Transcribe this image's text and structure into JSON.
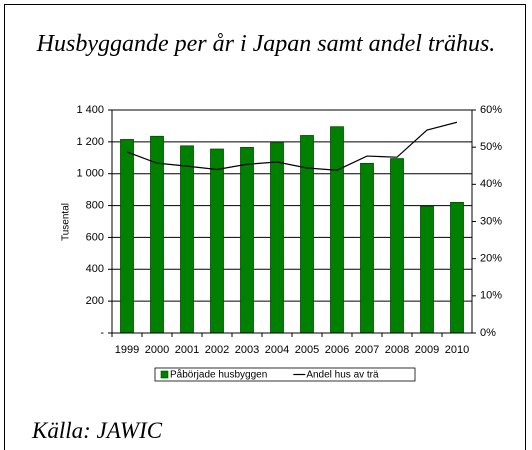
{
  "chart_data": {
    "type": "bar",
    "title": "Husbyggande per år i Japan samt andel trähus.",
    "y_label": "Tusental",
    "source": "Källa: JAWIC",
    "categories": [
      "1999",
      "2000",
      "2001",
      "2002",
      "2003",
      "2004",
      "2005",
      "2006",
      "2007",
      "2008",
      "2009",
      "2010"
    ],
    "series": [
      {
        "name": "Påbörjade husbyggen",
        "type": "bar",
        "color": "#008000",
        "values": [
          1215,
          1235,
          1175,
          1155,
          1165,
          1195,
          1240,
          1295,
          1065,
          1095,
          795,
          820
        ]
      },
      {
        "name": "Andel hus av trä",
        "type": "line",
        "axis": "y2",
        "color": "#000000",
        "values": [
          48.7,
          45.7,
          44.9,
          44.0,
          45.4,
          46.0,
          44.4,
          43.8,
          47.6,
          47.3,
          54.6,
          56.7
        ]
      }
    ],
    "ylim": [
      0,
      1400
    ],
    "yticks": [
      {
        "value": 0,
        "label": "-"
      },
      200,
      400,
      600,
      800,
      {
        "value": 1000,
        "label": "1 000"
      },
      {
        "value": 1200,
        "label": "1 200"
      },
      {
        "value": 1400,
        "label": "1 400"
      }
    ],
    "y2lim": [
      0,
      60
    ],
    "y2ticks": [
      {
        "value": 0,
        "label": "0%"
      },
      {
        "value": 10,
        "label": "10%"
      },
      {
        "value": 20,
        "label": "20%"
      },
      {
        "value": 30,
        "label": "30%"
      },
      {
        "value": 40,
        "label": "40%"
      },
      {
        "value": 50,
        "label": "50%"
      },
      {
        "value": 60,
        "label": "60%"
      }
    ],
    "grid": true,
    "legend": "bottom"
  }
}
